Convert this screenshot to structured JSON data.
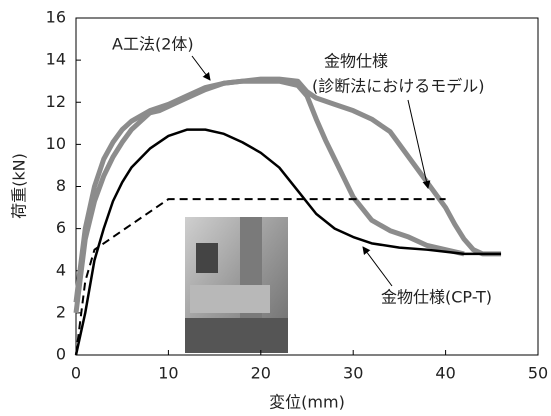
{
  "chart_data": {
    "type": "line",
    "x_label": "変位(mm)",
    "y_label": "荷重(kN)",
    "xlim": [
      0,
      50
    ],
    "xticks": [
      0,
      10,
      20,
      30,
      40,
      50
    ],
    "ylim": [
      0,
      16
    ],
    "yticks": [
      0,
      2,
      4,
      6,
      8,
      10,
      12,
      14,
      16
    ],
    "grid": false,
    "series": [
      {
        "color": "#8c8c8c",
        "style": "solid",
        "x": [
          0,
          1,
          2,
          3,
          4,
          5,
          6,
          7,
          8,
          9,
          10,
          12,
          14,
          16,
          18,
          20,
          22,
          24,
          25,
          26,
          27,
          28,
          29,
          30,
          32,
          34,
          36,
          38,
          40,
          42
        ],
        "values": [
          2,
          5.5,
          7.3,
          8.5,
          9.4,
          10.1,
          10.7,
          11.1,
          11.5,
          11.6,
          11.8,
          12.2,
          12.6,
          12.9,
          13.0,
          13.0,
          13.0,
          12.8,
          12.3,
          11.2,
          10.2,
          9.3,
          8.4,
          7.5,
          6.4,
          5.9,
          5.6,
          5.2,
          5.0,
          4.8
        ]
      },
      {
        "color": "#8c8c8c",
        "style": "solid",
        "x": [
          0,
          1,
          2,
          3,
          4,
          5,
          6,
          8,
          10,
          12,
          14,
          16,
          18,
          20,
          22,
          24,
          25,
          26,
          28,
          30,
          32,
          34,
          36,
          38,
          40,
          41,
          42,
          43,
          44,
          46
        ],
        "values": [
          2.5,
          6,
          8,
          9.3,
          10.1,
          10.7,
          11.1,
          11.6,
          11.9,
          12.3,
          12.7,
          12.9,
          13.0,
          13.1,
          13.1,
          13.0,
          12.5,
          12.2,
          11.9,
          11.6,
          11.2,
          10.6,
          9.4,
          8.2,
          7.0,
          6.2,
          5.5,
          5.0,
          4.8,
          4.8
        ]
      },
      {
        "color": "#000000",
        "style": "dashed",
        "x": [
          0,
          1,
          2,
          10,
          40
        ],
        "values": [
          0,
          3.5,
          5,
          7.4,
          7.4
        ]
      },
      {
        "color": "#000000",
        "style": "solid",
        "x": [
          0,
          1,
          2,
          3,
          4,
          5,
          6,
          8,
          10,
          12,
          14,
          16,
          18,
          20,
          22,
          24,
          26,
          28,
          30,
          32,
          35,
          38,
          40,
          42,
          44,
          46
        ],
        "values": [
          0,
          2,
          4.5,
          6,
          7.3,
          8.2,
          8.9,
          9.8,
          10.4,
          10.7,
          10.7,
          10.5,
          10.1,
          9.6,
          8.9,
          7.8,
          6.7,
          6.0,
          5.6,
          5.3,
          5.1,
          5.0,
          4.9,
          4.8,
          4.8,
          4.8
        ]
      }
    ],
    "annotations": [
      {
        "lines": [
          "A工法(2体)"
        ]
      },
      {
        "lines": [
          "金物仕様",
          "(診断法におけるモデル)"
        ]
      },
      {
        "lines": [
          "金物仕様(CP-T)"
        ]
      }
    ]
  }
}
